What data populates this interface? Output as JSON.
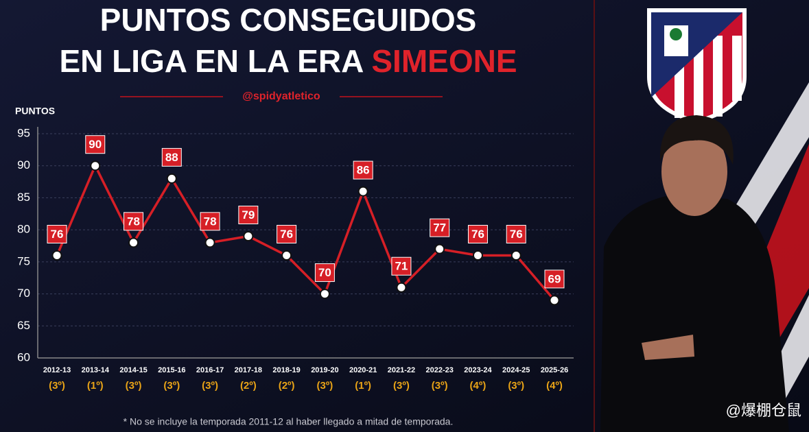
{
  "chart_data": {
    "type": "line",
    "title": "PUNTOS CONSEGUIDOS",
    "title_line2": "EN LIGA EN LA ERA",
    "title_highlight": "SIMEONE",
    "handle": "@spidyatletico",
    "y_label": "PUNTOS",
    "categories": [
      "2012-13",
      "2013-14",
      "2014-15",
      "2015-16",
      "2016-17",
      "2017-18",
      "2018-19",
      "2019-20",
      "2020-21",
      "2021-22",
      "2022-23",
      "2023-24",
      "2024-25",
      "2025-26"
    ],
    "positions": [
      "(3º)",
      "(1º)",
      "(3º)",
      "(3º)",
      "(3º)",
      "(2º)",
      "(2º)",
      "(3º)",
      "(1º)",
      "(3º)",
      "(3º)",
      "(4º)",
      "(3º)",
      "(4º)"
    ],
    "values": [
      76,
      90,
      78,
      88,
      78,
      79,
      76,
      70,
      86,
      71,
      77,
      76,
      76,
      69
    ],
    "color": "#d61f26",
    "ylim": [
      60,
      95
    ],
    "yticks": [
      60,
      65,
      70,
      75,
      80,
      85,
      90,
      95
    ],
    "grid": true,
    "footnote": "* No se incluye la temporada 2011-12 al haber llegado a mitad de temporada.",
    "watermark": "@爆棚仓鼠"
  }
}
